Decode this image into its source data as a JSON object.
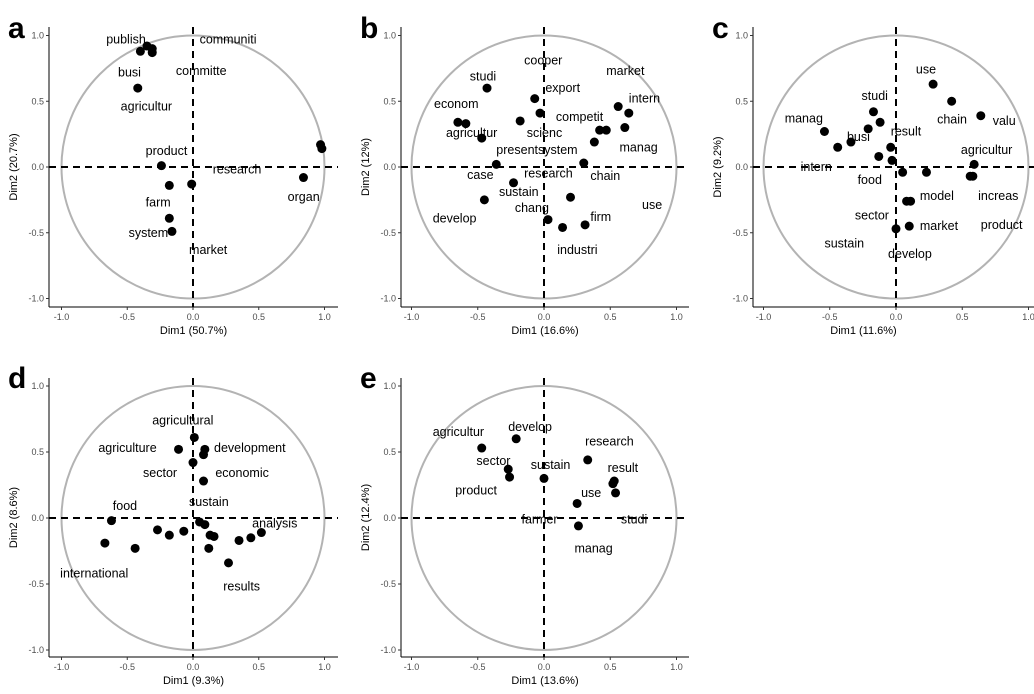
{
  "chart_data": [
    {
      "panel": "a",
      "type": "scatter",
      "xlabel": "Dim1 (50.7%)",
      "ylabel": "Dim2 (20.7%)",
      "xlim": [
        -1.0,
        1.0
      ],
      "ylim": [
        -1.0,
        1.0
      ],
      "xticks": [
        "-1.0",
        "-0.5",
        "0.0",
        "0.5",
        "1.0"
      ],
      "yticks": [
        "-1.0",
        "-0.5",
        "0.0",
        "0.5",
        "1.0"
      ],
      "grid": false,
      "unit_circle": true,
      "points": [
        {
          "x": -0.4,
          "y": 0.88
        },
        {
          "x": -0.35,
          "y": 0.92
        },
        {
          "x": -0.31,
          "y": 0.9
        },
        {
          "x": -0.31,
          "y": 0.87
        },
        {
          "x": -0.42,
          "y": 0.6
        },
        {
          "x": -0.24,
          "y": 0.01
        },
        {
          "x": -0.18,
          "y": -0.14
        },
        {
          "x": -0.01,
          "y": -0.13
        },
        {
          "x": -0.18,
          "y": -0.39
        },
        {
          "x": -0.16,
          "y": -0.49
        },
        {
          "x": 0.84,
          "y": -0.08
        },
        {
          "x": 0.97,
          "y": 0.17
        },
        {
          "x": 0.98,
          "y": 0.14
        }
      ],
      "labels": [
        {
          "text": "publish",
          "x": -0.66,
          "y": 0.97
        },
        {
          "text": "communiti",
          "x": 0.05,
          "y": 0.97
        },
        {
          "text": "busi",
          "x": -0.57,
          "y": 0.72
        },
        {
          "text": "committe",
          "x": -0.13,
          "y": 0.73
        },
        {
          "text": "agricultur",
          "x": -0.55,
          "y": 0.46
        },
        {
          "text": "product",
          "x": -0.36,
          "y": 0.12
        },
        {
          "text": "research",
          "x": 0.15,
          "y": -0.02
        },
        {
          "text": "farm",
          "x": -0.36,
          "y": -0.27
        },
        {
          "text": "system",
          "x": -0.49,
          "y": -0.5
        },
        {
          "text": "market",
          "x": -0.03,
          "y": -0.63
        },
        {
          "text": "organ",
          "x": 0.72,
          "y": -0.23
        }
      ]
    },
    {
      "panel": "b",
      "type": "scatter",
      "xlabel": "Dim1 (16.6%)",
      "ylabel": "Dim2 (12%)",
      "xlim": [
        -1.0,
        1.0
      ],
      "ylim": [
        -1.0,
        1.0
      ],
      "xticks": [
        "-1.0",
        "-0.5",
        "0.0",
        "0.5",
        "1.0"
      ],
      "yticks": [
        "-1.0",
        "-0.5",
        "0.0",
        "0.5",
        "1.0"
      ],
      "grid": false,
      "unit_circle": true,
      "points": [
        {
          "x": -0.43,
          "y": 0.6
        },
        {
          "x": -0.07,
          "y": 0.52
        },
        {
          "x": -0.03,
          "y": 0.41
        },
        {
          "x": -0.65,
          "y": 0.34
        },
        {
          "x": -0.59,
          "y": 0.33
        },
        {
          "x": -0.47,
          "y": 0.22
        },
        {
          "x": -0.18,
          "y": 0.35
        },
        {
          "x": 0.56,
          "y": 0.46
        },
        {
          "x": 0.64,
          "y": 0.41
        },
        {
          "x": 0.42,
          "y": 0.28
        },
        {
          "x": 0.47,
          "y": 0.28
        },
        {
          "x": 0.38,
          "y": 0.19
        },
        {
          "x": 0.61,
          "y": 0.3
        },
        {
          "x": 0.3,
          "y": 0.03
        },
        {
          "x": -0.36,
          "y": 0.02
        },
        {
          "x": -0.23,
          "y": -0.12
        },
        {
          "x": -0.45,
          "y": -0.25
        },
        {
          "x": 0.2,
          "y": -0.23
        },
        {
          "x": 0.03,
          "y": -0.4
        },
        {
          "x": 0.14,
          "y": -0.46
        },
        {
          "x": 0.31,
          "y": -0.44
        }
      ],
      "labels": [
        {
          "text": "cooper",
          "x": -0.15,
          "y": 0.81
        },
        {
          "text": "market",
          "x": 0.47,
          "y": 0.73
        },
        {
          "text": "studi",
          "x": -0.56,
          "y": 0.69
        },
        {
          "text": "export",
          "x": 0.01,
          "y": 0.6
        },
        {
          "text": "intern",
          "x": 0.64,
          "y": 0.52
        },
        {
          "text": "econom",
          "x": -0.83,
          "y": 0.48
        },
        {
          "text": "competit",
          "x": 0.09,
          "y": 0.38
        },
        {
          "text": "agricultur",
          "x": -0.74,
          "y": 0.26
        },
        {
          "text": "scienc",
          "x": -0.13,
          "y": 0.26
        },
        {
          "text": "manag",
          "x": 0.57,
          "y": 0.15
        },
        {
          "text": "presentsystem",
          "x": -0.36,
          "y": 0.13
        },
        {
          "text": "chain",
          "x": 0.35,
          "y": -0.07
        },
        {
          "text": "case",
          "x": -0.58,
          "y": -0.06
        },
        {
          "text": "research",
          "x": -0.15,
          "y": -0.05
        },
        {
          "text": "sustain",
          "x": -0.34,
          "y": -0.19
        },
        {
          "text": "use",
          "x": 0.74,
          "y": -0.29
        },
        {
          "text": "chang",
          "x": -0.22,
          "y": -0.31
        },
        {
          "text": "firm",
          "x": 0.35,
          "y": -0.38
        },
        {
          "text": "develop",
          "x": -0.84,
          "y": -0.39
        },
        {
          "text": "industri",
          "x": 0.1,
          "y": -0.63
        }
      ]
    },
    {
      "panel": "c",
      "type": "scatter",
      "xlabel": "Dim1 (11.6%)",
      "ylabel": "Dim2 (9.2%)",
      "xlim": [
        -1.0,
        1.0
      ],
      "ylim": [
        -1.0,
        1.0
      ],
      "xticks": [
        "-1.0",
        "-0.5",
        "0.0",
        "0.5",
        "1.0"
      ],
      "yticks": [
        "-1.0",
        "-0.5",
        "0.0",
        "0.5",
        "1.0"
      ],
      "grid": false,
      "unit_circle": true,
      "points": [
        {
          "x": 0.28,
          "y": 0.63
        },
        {
          "x": 0.42,
          "y": 0.5
        },
        {
          "x": 0.64,
          "y": 0.39
        },
        {
          "x": -0.17,
          "y": 0.42
        },
        {
          "x": -0.12,
          "y": 0.34
        },
        {
          "x": -0.54,
          "y": 0.27
        },
        {
          "x": -0.21,
          "y": 0.29
        },
        {
          "x": -0.34,
          "y": 0.19
        },
        {
          "x": -0.44,
          "y": 0.15
        },
        {
          "x": -0.04,
          "y": 0.15
        },
        {
          "x": -0.13,
          "y": 0.08
        },
        {
          "x": -0.03,
          "y": 0.05
        },
        {
          "x": 0.59,
          "y": 0.02
        },
        {
          "x": 0.05,
          "y": -0.04
        },
        {
          "x": 0.23,
          "y": -0.04
        },
        {
          "x": 0.56,
          "y": -0.07
        },
        {
          "x": 0.58,
          "y": -0.07
        },
        {
          "x": 0.08,
          "y": -0.26
        },
        {
          "x": 0.11,
          "y": -0.26
        },
        {
          "x": 0.1,
          "y": -0.45
        },
        {
          "x": 0.0,
          "y": -0.47
        }
      ],
      "labels": [
        {
          "text": "use",
          "x": 0.15,
          "y": 0.74
        },
        {
          "text": "studi",
          "x": -0.26,
          "y": 0.54
        },
        {
          "text": "manag",
          "x": -0.84,
          "y": 0.37
        },
        {
          "text": "chain",
          "x": 0.31,
          "y": 0.36
        },
        {
          "text": "valu",
          "x": 0.73,
          "y": 0.35
        },
        {
          "text": "busi",
          "x": -0.37,
          "y": 0.23
        },
        {
          "text": "result",
          "x": -0.04,
          "y": 0.27
        },
        {
          "text": "agricultur",
          "x": 0.49,
          "y": 0.13
        },
        {
          "text": "intern",
          "x": -0.72,
          "y": 0.0
        },
        {
          "text": "food",
          "x": -0.29,
          "y": -0.1
        },
        {
          "text": "model",
          "x": 0.18,
          "y": -0.22
        },
        {
          "text": "increas",
          "x": 0.62,
          "y": -0.22
        },
        {
          "text": "sector",
          "x": -0.31,
          "y": -0.37
        },
        {
          "text": "market",
          "x": 0.18,
          "y": -0.45
        },
        {
          "text": "product",
          "x": 0.64,
          "y": -0.44
        },
        {
          "text": "sustain",
          "x": -0.54,
          "y": -0.58
        },
        {
          "text": "develop",
          "x": -0.06,
          "y": -0.66
        }
      ]
    },
    {
      "panel": "d",
      "type": "scatter",
      "xlabel": "Dim1 (9.3%)",
      "ylabel": "Dim2 (8.6%)",
      "xlim": [
        -1.0,
        1.0
      ],
      "ylim": [
        -1.0,
        1.0
      ],
      "xticks": [
        "-1.0",
        "-0.5",
        "0.0",
        "0.5",
        "1.0"
      ],
      "yticks": [
        "-1.0",
        "-0.5",
        "0.0",
        "0.5",
        "1.0"
      ],
      "grid": false,
      "unit_circle": true,
      "points": [
        {
          "x": 0.01,
          "y": 0.61
        },
        {
          "x": -0.11,
          "y": 0.52
        },
        {
          "x": 0.09,
          "y": 0.52
        },
        {
          "x": 0.08,
          "y": 0.48
        },
        {
          "x": 0.0,
          "y": 0.42
        },
        {
          "x": 0.08,
          "y": 0.28
        },
        {
          "x": -0.62,
          "y": -0.02
        },
        {
          "x": 0.05,
          "y": -0.03
        },
        {
          "x": 0.09,
          "y": -0.05
        },
        {
          "x": -0.27,
          "y": -0.09
        },
        {
          "x": -0.18,
          "y": -0.13
        },
        {
          "x": -0.07,
          "y": -0.1
        },
        {
          "x": 0.13,
          "y": -0.13
        },
        {
          "x": 0.16,
          "y": -0.14
        },
        {
          "x": -0.67,
          "y": -0.19
        },
        {
          "x": -0.44,
          "y": -0.23
        },
        {
          "x": 0.12,
          "y": -0.23
        },
        {
          "x": 0.35,
          "y": -0.17
        },
        {
          "x": 0.44,
          "y": -0.15
        },
        {
          "x": 0.52,
          "y": -0.11
        },
        {
          "x": 0.27,
          "y": -0.34
        }
      ],
      "labels": [
        {
          "text": "agricultural",
          "x": -0.31,
          "y": 0.74
        },
        {
          "text": "agriculture",
          "x": -0.72,
          "y": 0.53
        },
        {
          "text": "development",
          "x": 0.16,
          "y": 0.53
        },
        {
          "text": "sector",
          "x": -0.38,
          "y": 0.34
        },
        {
          "text": "economic",
          "x": 0.17,
          "y": 0.34
        },
        {
          "text": "sustain",
          "x": -0.03,
          "y": 0.12
        },
        {
          "text": "food",
          "x": -0.61,
          "y": 0.09
        },
        {
          "text": "analysis",
          "x": 0.45,
          "y": -0.04
        },
        {
          "text": "international",
          "x": -1.01,
          "y": -0.42
        },
        {
          "text": "results",
          "x": 0.23,
          "y": -0.52
        }
      ]
    },
    {
      "panel": "e",
      "type": "scatter",
      "xlabel": "Dim1 (13.6%)",
      "ylabel": "Dim2 (12.4%)",
      "xlim": [
        -1.0,
        1.0
      ],
      "ylim": [
        -1.0,
        1.0
      ],
      "xticks": [
        "-1.0",
        "-0.5",
        "0.0",
        "0.5",
        "1.0"
      ],
      "yticks": [
        "-1.0",
        "-0.5",
        "0.0",
        "0.5",
        "1.0"
      ],
      "grid": false,
      "unit_circle": true,
      "points": [
        {
          "x": -0.21,
          "y": 0.6
        },
        {
          "x": -0.47,
          "y": 0.53
        },
        {
          "x": 0.33,
          "y": 0.44
        },
        {
          "x": -0.27,
          "y": 0.37
        },
        {
          "x": -0.26,
          "y": 0.31
        },
        {
          "x": 0.0,
          "y": 0.3
        },
        {
          "x": 0.53,
          "y": 0.28
        },
        {
          "x": 0.52,
          "y": 0.26
        },
        {
          "x": 0.54,
          "y": 0.19
        },
        {
          "x": 0.25,
          "y": 0.11
        },
        {
          "x": 0.26,
          "y": -0.06
        }
      ],
      "labels": [
        {
          "text": "agricultur",
          "x": -0.84,
          "y": 0.65
        },
        {
          "text": "develop",
          "x": -0.27,
          "y": 0.69
        },
        {
          "text": "research",
          "x": 0.31,
          "y": 0.58
        },
        {
          "text": "sector",
          "x": -0.51,
          "y": 0.43
        },
        {
          "text": "sustain",
          "x": -0.1,
          "y": 0.4
        },
        {
          "text": "result",
          "x": 0.48,
          "y": 0.38
        },
        {
          "text": "product",
          "x": -0.67,
          "y": 0.21
        },
        {
          "text": "use",
          "x": 0.28,
          "y": 0.19
        },
        {
          "text": "farmer",
          "x": -0.17,
          "y": -0.01
        },
        {
          "text": "studi",
          "x": 0.58,
          "y": -0.01
        },
        {
          "text": "manag",
          "x": 0.23,
          "y": -0.23
        }
      ]
    }
  ]
}
